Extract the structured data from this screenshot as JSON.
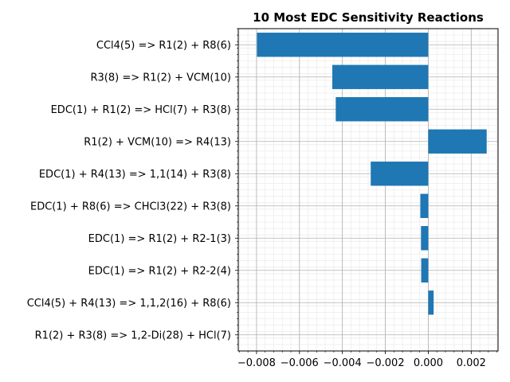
{
  "chart_data": {
    "type": "bar",
    "orientation": "horizontal",
    "title": "10 Most EDC Sensitivity Reactions",
    "xlabel": "",
    "ylabel": "",
    "categories": [
      "CCl4(5) => R1(2) + R8(6)",
      "R3(8) => R1(2) + VCM(10)",
      "EDC(1) + R1(2) => HCl(7) + R3(8)",
      "R1(2) + VCM(10) => R4(13)",
      "EDC(1) + R4(13) => 1,1(14) + R3(8)",
      "EDC(1) + R8(6) => CHCl3(22) + R3(8)",
      "EDC(1) => R1(2) + R2-1(3)",
      "EDC(1) => R1(2) + R2-2(4)",
      "CCl4(5) + R4(13) => 1,1,2(16) + R8(6)",
      "R1(2) + R3(8) => 1,2-Di(28) + HCl(7)"
    ],
    "values": [
      -0.00798,
      -0.00447,
      -0.00431,
      0.00272,
      -0.00268,
      -0.00037,
      -0.00034,
      -0.00033,
      0.00025,
      0.0
    ],
    "xlim": [
      -0.00885,
      0.00325
    ],
    "xticks": [
      -0.008,
      -0.006,
      -0.004,
      -0.002,
      0.0,
      0.002
    ],
    "xtick_labels": [
      "−0.008",
      "−0.006",
      "−0.004",
      "−0.002",
      "0.000",
      "0.002"
    ],
    "grid": true,
    "minor_grid": true,
    "bar_color": "#1f77b4"
  }
}
